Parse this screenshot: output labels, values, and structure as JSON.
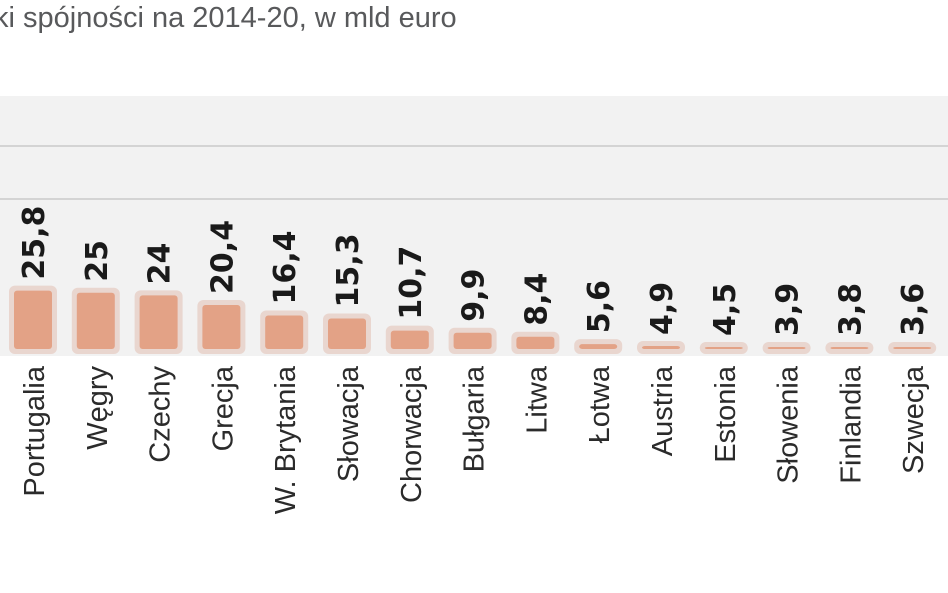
{
  "chart_data": {
    "type": "bar",
    "title": "ki spójności na 2014-20, w mld euro",
    "categories": [
      "Portugalia",
      "Węgry",
      "Czechy",
      "Grecja",
      "W. Brytania",
      "Słowacja",
      "Chorwacja",
      "Bułgaria",
      "Litwa",
      "Łotwa",
      "Austria",
      "Estonia",
      "Słowenia",
      "Finlandia",
      "Szwecja"
    ],
    "values": [
      25.8,
      25,
      24,
      20.4,
      16.4,
      15.3,
      10.7,
      9.9,
      8.4,
      5.6,
      4.9,
      4.5,
      3.9,
      3.8,
      3.6
    ],
    "value_labels": [
      "25,8",
      "25",
      "24",
      "20,4",
      "16,4",
      "15,3",
      "10,7",
      "9,9",
      "8,4",
      "5,6",
      "4,9",
      "4,5",
      "3,9",
      "3,8",
      "3,6"
    ],
    "grid": true,
    "colors": {
      "bar": "#e3a286",
      "bar_outline": "#e9d6cf",
      "background": "#f2f2f2",
      "grid": "#d4d4d4"
    }
  }
}
